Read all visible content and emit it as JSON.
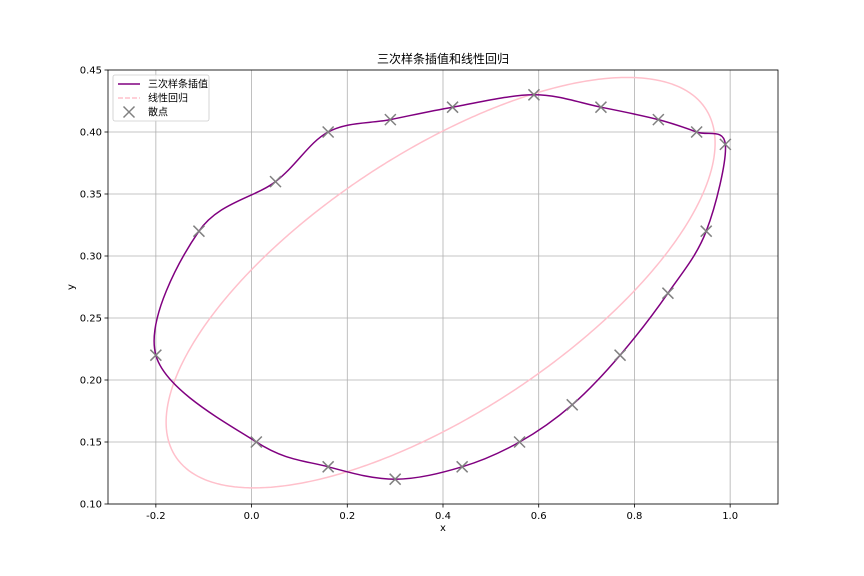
{
  "chart_data": {
    "type": "line",
    "title": "三次样条插值和线性回归",
    "xlabel": "x",
    "ylabel": "y",
    "xlim": [
      -0.3,
      1.1
    ],
    "ylim": [
      0.1,
      0.45
    ],
    "xticks": [
      "-0.2",
      "0.0",
      "0.2",
      "0.4",
      "0.6",
      "0.8",
      "1.0"
    ],
    "xtick_values": [
      -0.2,
      0.0,
      0.2,
      0.4,
      0.6,
      0.8,
      1.0
    ],
    "yticks": [
      "0.10",
      "0.15",
      "0.20",
      "0.25",
      "0.30",
      "0.35",
      "0.40",
      "0.45"
    ],
    "ytick_values": [
      0.1,
      0.15,
      0.2,
      0.25,
      0.3,
      0.35,
      0.4,
      0.45
    ],
    "grid": true,
    "legend_position": "top-left",
    "series": [
      {
        "name": "三次样条插值",
        "kind": "closed-spline",
        "color": "#800080",
        "points": [
          [
            -0.2,
            0.22
          ],
          [
            0.01,
            0.15
          ],
          [
            0.16,
            0.13
          ],
          [
            0.3,
            0.12
          ],
          [
            0.44,
            0.13
          ],
          [
            0.56,
            0.15
          ],
          [
            0.67,
            0.18
          ],
          [
            0.77,
            0.22
          ],
          [
            0.87,
            0.27
          ],
          [
            0.95,
            0.32
          ],
          [
            0.99,
            0.39
          ],
          [
            0.93,
            0.4
          ],
          [
            0.85,
            0.41
          ],
          [
            0.73,
            0.42
          ],
          [
            0.59,
            0.43
          ],
          [
            0.42,
            0.42
          ],
          [
            0.29,
            0.41
          ],
          [
            0.16,
            0.4
          ],
          [
            0.05,
            0.36
          ],
          [
            -0.11,
            0.32
          ]
        ]
      },
      {
        "name": "线性回归",
        "kind": "ellipse",
        "color": "#ffc0cb",
        "style": "dashed",
        "center": [
          0.395,
          0.2785
        ],
        "semi_axes": [
          0.585,
          0.119
        ],
        "tilt_slope": 0.205
      },
      {
        "name": "散点",
        "kind": "scatter",
        "color": "#808080",
        "marker": "x",
        "points": [
          [
            -0.2,
            0.22
          ],
          [
            0.01,
            0.15
          ],
          [
            0.16,
            0.13
          ],
          [
            0.3,
            0.12
          ],
          [
            0.44,
            0.13
          ],
          [
            0.56,
            0.15
          ],
          [
            0.67,
            0.18
          ],
          [
            0.77,
            0.22
          ],
          [
            0.87,
            0.27
          ],
          [
            0.95,
            0.32
          ],
          [
            0.99,
            0.39
          ],
          [
            0.93,
            0.4
          ],
          [
            0.85,
            0.41
          ],
          [
            0.73,
            0.42
          ],
          [
            0.59,
            0.43
          ],
          [
            0.42,
            0.42
          ],
          [
            0.29,
            0.41
          ],
          [
            0.16,
            0.4
          ],
          [
            0.05,
            0.36
          ],
          [
            -0.11,
            0.32
          ]
        ]
      }
    ]
  }
}
